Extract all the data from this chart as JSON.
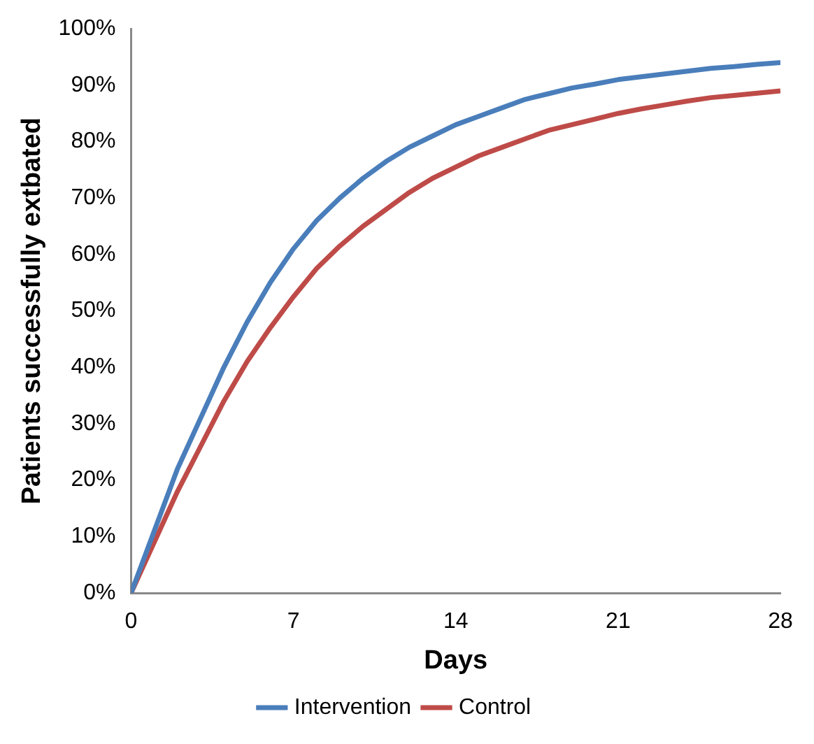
{
  "chart_data": {
    "type": "line",
    "xlabel": "Days",
    "ylabel": "Patients successfully extbated",
    "x": [
      0,
      1,
      2,
      3,
      4,
      5,
      6,
      7,
      8,
      9,
      10,
      11,
      12,
      13,
      14,
      15,
      16,
      17,
      18,
      19,
      20,
      21,
      22,
      23,
      24,
      25,
      26,
      27,
      28
    ],
    "series": [
      {
        "name": "Intervention",
        "color": "#4a7ebb",
        "values": [
          0,
          11,
          22,
          31,
          40,
          48,
          55,
          61,
          66,
          70,
          73.5,
          76.5,
          79,
          81,
          83,
          84.5,
          86,
          87.5,
          88.5,
          89.5,
          90.2,
          91,
          91.5,
          92,
          92.5,
          93,
          93.3,
          93.7,
          94
        ]
      },
      {
        "name": "Control",
        "color": "#be4b48",
        "values": [
          0,
          9,
          18,
          26,
          34,
          41,
          47,
          52.5,
          57.5,
          61.5,
          65,
          68,
          71,
          73.5,
          75.5,
          77.5,
          79,
          80.5,
          82,
          83,
          84,
          85,
          85.8,
          86.5,
          87.2,
          87.8,
          88.2,
          88.6,
          89
        ]
      }
    ],
    "xlim": [
      0,
      28
    ],
    "xticks": [
      0,
      7,
      14,
      21,
      28
    ],
    "ylim": [
      0,
      100
    ],
    "yticks": [
      {
        "value": 0,
        "label": "0%"
      },
      {
        "value": 10,
        "label": "10%"
      },
      {
        "value": 20,
        "label": "20%"
      },
      {
        "value": 30,
        "label": "30%"
      },
      {
        "value": 40,
        "label": "40%"
      },
      {
        "value": 50,
        "label": "50%"
      },
      {
        "value": 60,
        "label": "60%"
      },
      {
        "value": 70,
        "label": "70%"
      },
      {
        "value": 80,
        "label": "80%"
      },
      {
        "value": 90,
        "label": "90%"
      },
      {
        "value": 100,
        "label": "100%"
      }
    ],
    "grid": false,
    "legend": "bottom",
    "marker": "none",
    "line_style": "solid"
  }
}
